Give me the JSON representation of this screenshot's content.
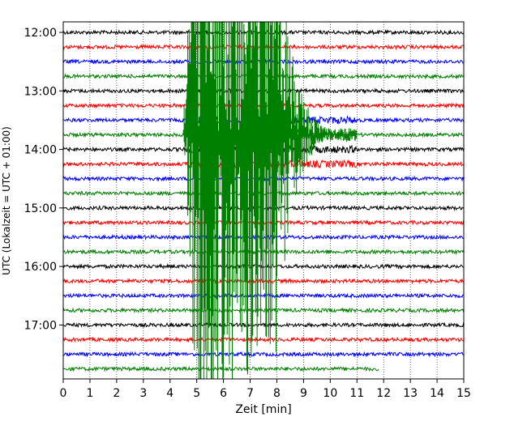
{
  "chart_data": {
    "type": "line",
    "subtype": "helicorder",
    "xlabel": "Zeit  [min]",
    "ylabel": "UTC (Lokalzeit = UTC + 01:00)",
    "xlim": [
      0,
      15
    ],
    "x_ticks": [
      0,
      1,
      2,
      3,
      4,
      5,
      6,
      7,
      8,
      9,
      10,
      11,
      12,
      13,
      14,
      15
    ],
    "y_tick_labels": [
      "12:00",
      "13:00",
      "14:00",
      "15:00",
      "16:00",
      "17:00"
    ],
    "grid": "vertical-dotted",
    "trace_interval_min": 15,
    "trace_color_cycle": [
      "#000000",
      "#ff0000",
      "#0000ff",
      "#008000"
    ],
    "traces": [
      {
        "start": "12:00",
        "end_min": 15
      },
      {
        "start": "12:15",
        "end_min": 15
      },
      {
        "start": "12:30",
        "end_min": 15
      },
      {
        "start": "12:45",
        "end_min": 15
      },
      {
        "start": "13:00",
        "end_min": 15
      },
      {
        "start": "13:15",
        "end_min": 15
      },
      {
        "start": "13:30",
        "end_min": 15
      },
      {
        "start": "13:45",
        "end_min": 15
      },
      {
        "start": "14:00",
        "end_min": 15
      },
      {
        "start": "14:15",
        "end_min": 15
      },
      {
        "start": "14:30",
        "end_min": 15
      },
      {
        "start": "14:45",
        "end_min": 15
      },
      {
        "start": "15:00",
        "end_min": 15
      },
      {
        "start": "15:15",
        "end_min": 15
      },
      {
        "start": "15:30",
        "end_min": 15
      },
      {
        "start": "15:45",
        "end_min": 15
      },
      {
        "start": "16:00",
        "end_min": 15
      },
      {
        "start": "16:15",
        "end_min": 15
      },
      {
        "start": "16:30",
        "end_min": 15
      },
      {
        "start": "16:45",
        "end_min": 15
      },
      {
        "start": "17:00",
        "end_min": 15
      },
      {
        "start": "17:15",
        "end_min": 15
      },
      {
        "start": "17:30",
        "end_min": 15
      },
      {
        "start": "17:45",
        "end_min": 11.8
      }
    ],
    "events": [
      {
        "trace": "13:45",
        "start_min": 4.5,
        "peak_min": 5,
        "end_min": 11,
        "note": "large earthquake, amplitude exceeds plot"
      }
    ]
  }
}
